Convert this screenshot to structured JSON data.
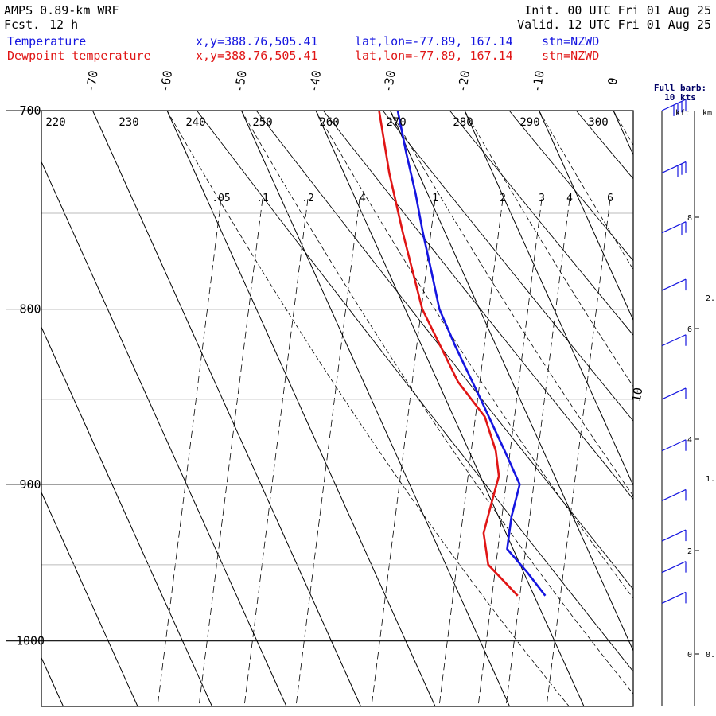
{
  "header": {
    "model": "AMPS 0.89-km WRF",
    "forecast_label": "Fcst.",
    "forecast_value": "12 h",
    "init": "Init. 00 UTC Fri 01 Aug 25",
    "valid": "Valid. 12 UTC Fri 01 Aug 25",
    "rows": [
      {
        "name": "Temperature",
        "xy": "x,y=388.76,505.41",
        "latlon": "lat,lon=-77.89, 167.14",
        "stn": "stn=NZWD",
        "color": "#1515e0"
      },
      {
        "name": "Dewpoint temperature",
        "xy": "x,y=388.76,505.41",
        "latlon": "lat,lon=-77.89, 167.14",
        "stn": "stn=NZWD",
        "color": "#e01515"
      }
    ]
  },
  "barb_legend": {
    "line1": "Full barb:",
    "line2": "10 kts",
    "kft": "kft",
    "km": "km",
    "kft_ticks": [
      "8",
      "6",
      "4",
      "2",
      "0"
    ],
    "km_ticks": [
      "2.",
      "1.",
      "0."
    ]
  },
  "chart_data": {
    "type": "line",
    "subtype": "skew-T log-p",
    "y_axis": {
      "label": "",
      "ticks": [
        700,
        800,
        900,
        1000
      ],
      "range": [
        1045,
        700
      ],
      "scale": "log"
    },
    "temperature_ticks": [
      -70,
      -60,
      -50,
      -40,
      -30,
      -20,
      -10,
      0,
      10
    ],
    "potential_temperature_labels": [
      "220",
      "230",
      "240",
      "250",
      "260",
      "270",
      "280",
      "290",
      "300"
    ],
    "mixing_ratio_labels": [
      ".05",
      ".1",
      ".2",
      ".4",
      "1",
      "2",
      "3",
      "4",
      "6"
    ],
    "grid": true,
    "series": [
      {
        "name": "Temperature",
        "color": "#1515e0",
        "points": [
          {
            "p": 970,
            "t": -38.5
          },
          {
            "p": 955,
            "t": -39.5
          },
          {
            "p": 940,
            "t": -40.8
          },
          {
            "p": 920,
            "t": -38.3
          },
          {
            "p": 900,
            "t": -35.2
          },
          {
            "p": 880,
            "t": -35.2
          },
          {
            "p": 850,
            "t": -35.3
          },
          {
            "p": 820,
            "t": -35.5
          },
          {
            "p": 800,
            "t": -35.4
          },
          {
            "p": 780,
            "t": -34.2
          },
          {
            "p": 760,
            "t": -33.0
          },
          {
            "p": 740,
            "t": -31.6
          },
          {
            "p": 720,
            "t": -30.4
          },
          {
            "p": 700,
            "t": -29.0
          }
        ]
      },
      {
        "name": "Dewpoint temperature",
        "color": "#e01515",
        "points": [
          {
            "p": 970,
            "t": -42.2
          },
          {
            "p": 950,
            "t": -44.3
          },
          {
            "p": 930,
            "t": -43.0
          },
          {
            "p": 910,
            "t": -39.9
          },
          {
            "p": 895,
            "t": -37.5
          },
          {
            "p": 880,
            "t": -36.4
          },
          {
            "p": 860,
            "t": -35.8
          },
          {
            "p": 840,
            "t": -37.3
          },
          {
            "p": 800,
            "t": -37.7
          },
          {
            "p": 760,
            "t": -35.7
          },
          {
            "p": 730,
            "t": -33.9
          },
          {
            "p": 700,
            "t": -31.5
          }
        ]
      }
    ],
    "winds_kts": [
      {
        "p": 700,
        "spd": 40
      },
      {
        "p": 730,
        "spd": 30
      },
      {
        "p": 760,
        "spd": 20
      },
      {
        "p": 790,
        "spd": 10
      },
      {
        "p": 820,
        "spd": 10
      },
      {
        "p": 850,
        "spd": 10
      },
      {
        "p": 880,
        "spd": 10
      },
      {
        "p": 910,
        "spd": 10
      },
      {
        "p": 935,
        "spd": 10
      },
      {
        "p": 955,
        "spd": 10
      },
      {
        "p": 975,
        "spd": 10
      }
    ]
  }
}
